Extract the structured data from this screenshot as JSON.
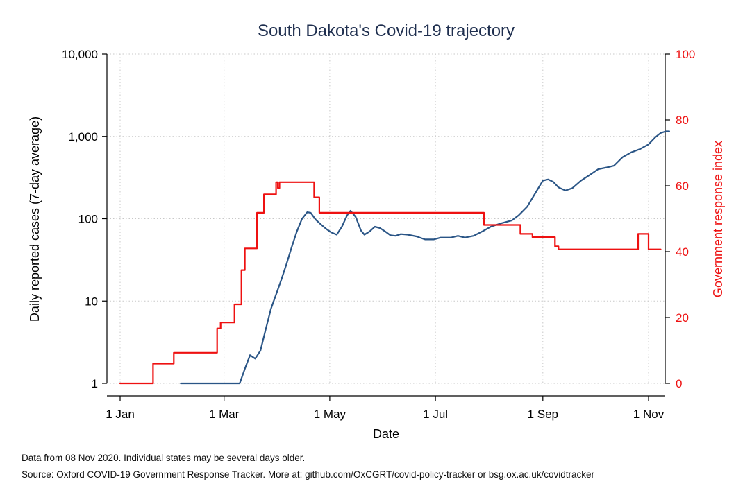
{
  "chart_data": {
    "type": "line",
    "title": "South Dakota's Covid-19 trajectory",
    "xlabel": "Date",
    "ylabel": "Daily reported cases (7-day average)",
    "ylabel_right": "Government response index",
    "x_ticks": [
      {
        "date": "2020-01-01",
        "label": "1 Jan"
      },
      {
        "date": "2020-03-01",
        "label": "1 Mar"
      },
      {
        "date": "2020-05-01",
        "label": "1 May"
      },
      {
        "date": "2020-07-01",
        "label": "1 Jul"
      },
      {
        "date": "2020-09-01",
        "label": "1 Sep"
      },
      {
        "date": "2020-11-01",
        "label": "1 Nov"
      }
    ],
    "xlim": [
      "2020-01-01",
      "2020-11-08"
    ],
    "y_left": {
      "scale": "log",
      "ylim": [
        1,
        10000
      ],
      "ticks": [
        {
          "value": 1,
          "label": "1"
        },
        {
          "value": 10,
          "label": "10"
        },
        {
          "value": 100,
          "label": "100"
        },
        {
          "value": 1000,
          "label": "1,000"
        },
        {
          "value": 10000,
          "label": "10,000"
        }
      ]
    },
    "y_right": {
      "scale": "linear",
      "ylim": [
        0,
        100
      ],
      "ticks": [
        {
          "value": 0,
          "label": "0"
        },
        {
          "value": 20,
          "label": "20"
        },
        {
          "value": 40,
          "label": "40"
        },
        {
          "value": 60,
          "label": "60"
        },
        {
          "value": 80,
          "label": "80"
        },
        {
          "value": 100,
          "label": "100"
        }
      ]
    },
    "grid": true,
    "series": [
      {
        "axis": "left",
        "color": "#2a5586",
        "points": [
          [
            "2020-02-05",
            1
          ],
          [
            "2020-03-10",
            1
          ],
          [
            "2020-03-13",
            1.5
          ],
          [
            "2020-03-16",
            2.2
          ],
          [
            "2020-03-19",
            2.0
          ],
          [
            "2020-03-22",
            2.5
          ],
          [
            "2020-03-25",
            4.5
          ],
          [
            "2020-03-28",
            8
          ],
          [
            "2020-03-31",
            12
          ],
          [
            "2020-04-03",
            18
          ],
          [
            "2020-04-06",
            28
          ],
          [
            "2020-04-09",
            45
          ],
          [
            "2020-04-12",
            70
          ],
          [
            "2020-04-15",
            100
          ],
          [
            "2020-04-18",
            120
          ],
          [
            "2020-04-20",
            118
          ],
          [
            "2020-04-23",
            97
          ],
          [
            "2020-04-26",
            85
          ],
          [
            "2020-04-29",
            75
          ],
          [
            "2020-05-02",
            68
          ],
          [
            "2020-05-05",
            64
          ],
          [
            "2020-05-08",
            80
          ],
          [
            "2020-05-11",
            110
          ],
          [
            "2020-05-13",
            125
          ],
          [
            "2020-05-16",
            105
          ],
          [
            "2020-05-19",
            72
          ],
          [
            "2020-05-21",
            64
          ],
          [
            "2020-05-24",
            70
          ],
          [
            "2020-05-27",
            80
          ],
          [
            "2020-05-30",
            77
          ],
          [
            "2020-06-02",
            70
          ],
          [
            "2020-06-05",
            63
          ],
          [
            "2020-06-08",
            62
          ],
          [
            "2020-06-11",
            65
          ],
          [
            "2020-06-15",
            64
          ],
          [
            "2020-06-20",
            61
          ],
          [
            "2020-06-25",
            56
          ],
          [
            "2020-06-30",
            56
          ],
          [
            "2020-07-04",
            59
          ],
          [
            "2020-07-10",
            59
          ],
          [
            "2020-07-14",
            62
          ],
          [
            "2020-07-18",
            59
          ],
          [
            "2020-07-23",
            62
          ],
          [
            "2020-07-28",
            70
          ],
          [
            "2020-08-02",
            80
          ],
          [
            "2020-08-08",
            88
          ],
          [
            "2020-08-14",
            95
          ],
          [
            "2020-08-18",
            110
          ],
          [
            "2020-08-23",
            140
          ],
          [
            "2020-08-28",
            210
          ],
          [
            "2020-09-01",
            290
          ],
          [
            "2020-09-04",
            300
          ],
          [
            "2020-09-07",
            280
          ],
          [
            "2020-09-10",
            240
          ],
          [
            "2020-09-14",
            220
          ],
          [
            "2020-09-18",
            235
          ],
          [
            "2020-09-23",
            290
          ],
          [
            "2020-09-28",
            340
          ],
          [
            "2020-10-03",
            400
          ],
          [
            "2020-10-08",
            420
          ],
          [
            "2020-10-12",
            440
          ],
          [
            "2020-10-17",
            560
          ],
          [
            "2020-10-22",
            640
          ],
          [
            "2020-10-27",
            700
          ],
          [
            "2020-11-01",
            800
          ],
          [
            "2020-11-05",
            980
          ],
          [
            "2020-11-08",
            1100
          ],
          [
            "2020-11-11",
            1150
          ],
          [
            "2020-11-13",
            1150
          ]
        ]
      },
      {
        "axis": "right",
        "color": "#ee1111",
        "step": true,
        "points": [
          [
            "2020-01-01",
            0
          ],
          [
            "2020-01-20",
            6
          ],
          [
            "2020-02-01",
            9.3
          ],
          [
            "2020-02-26",
            16.7
          ],
          [
            "2020-02-28",
            18.5
          ],
          [
            "2020-03-07",
            24
          ],
          [
            "2020-03-11",
            34.4
          ],
          [
            "2020-03-13",
            41
          ],
          [
            "2020-03-20",
            51.8
          ],
          [
            "2020-03-24",
            57.4
          ],
          [
            "2020-03-31",
            61.1
          ],
          [
            "2020-04-01",
            59.3
          ],
          [
            "2020-04-02",
            61.1
          ],
          [
            "2020-04-22",
            56.5
          ],
          [
            "2020-04-25",
            51.8
          ],
          [
            "2020-07-29",
            48.1
          ],
          [
            "2020-08-19",
            45.4
          ],
          [
            "2020-08-26",
            44.4
          ],
          [
            "2020-09-08",
            41.6
          ],
          [
            "2020-09-10",
            40.7
          ],
          [
            "2020-09-11",
            40.7
          ],
          [
            "2020-10-26",
            45.4
          ],
          [
            "2020-11-01",
            40.7
          ],
          [
            "2020-11-08",
            40.7
          ]
        ]
      }
    ],
    "notes": [
      "Data from 08 Nov 2020. Individual states may be several days older.",
      "Source: Oxford COVID-19 Government Response Tracker. More at: github.com/OxCGRT/covid-policy-tracker or bsg.ox.ac.uk/covidtracker"
    ]
  }
}
